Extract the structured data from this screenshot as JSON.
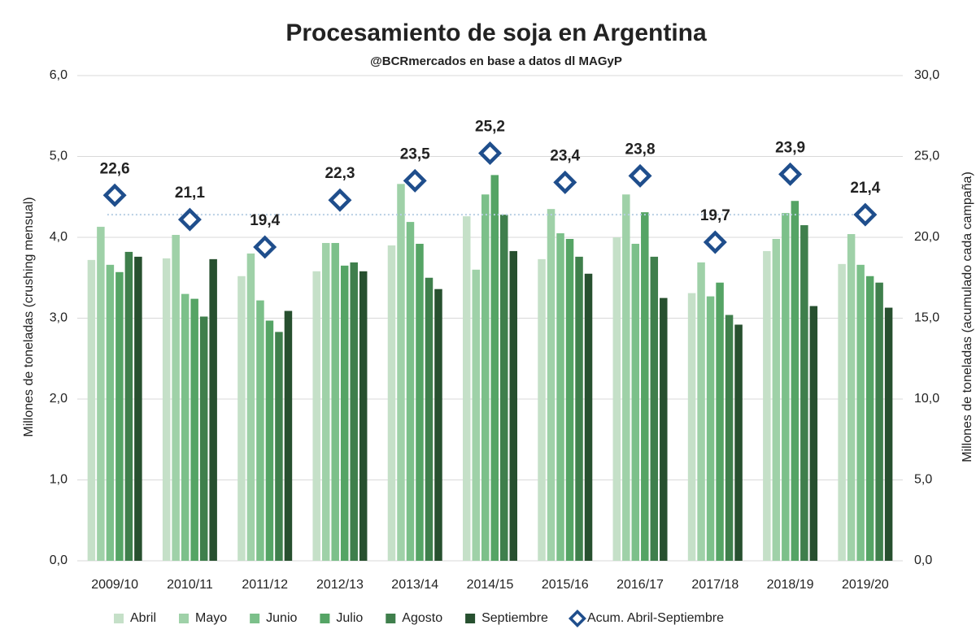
{
  "chart_data": {
    "type": "bar",
    "title": "Procesamiento de soja en Argentina",
    "subtitle": "@BCRmercados en base a datos dl MAGyP",
    "y_label": "Millones de toneladas (crushing mensual)",
    "y2_label": "Millones de toneladas (acumulado cada campaña)",
    "categories": [
      "2009/10",
      "2010/11",
      "2011/12",
      "2012/13",
      "2013/14",
      "2014/15",
      "2015/16",
      "2016/17",
      "2017/18",
      "2018/19",
      "2019/20"
    ],
    "series": [
      {
        "name": "Abril",
        "color": "#c5e0c8",
        "values": [
          3.72,
          3.74,
          3.52,
          3.58,
          3.9,
          4.26,
          3.73,
          4.0,
          3.31,
          3.83,
          3.67
        ]
      },
      {
        "name": "Mayo",
        "color": "#9fd1a8",
        "values": [
          4.13,
          4.03,
          3.8,
          3.93,
          4.66,
          3.6,
          4.35,
          4.53,
          3.69,
          3.98,
          4.04
        ]
      },
      {
        "name": "Junio",
        "color": "#7cc08a",
        "values": [
          3.66,
          3.3,
          3.22,
          3.93,
          4.19,
          4.53,
          4.05,
          3.92,
          3.27,
          4.3,
          3.66
        ]
      },
      {
        "name": "Julio",
        "color": "#55a465",
        "values": [
          3.57,
          3.24,
          2.97,
          3.65,
          3.92,
          4.77,
          3.98,
          4.31,
          3.44,
          4.45,
          3.52
        ]
      },
      {
        "name": "Agosto",
        "color": "#3f7f4c",
        "values": [
          3.82,
          3.02,
          2.83,
          3.69,
          3.5,
          4.28,
          3.76,
          3.76,
          3.04,
          4.15,
          3.44
        ]
      },
      {
        "name": "Septiembre",
        "color": "#27502f",
        "values": [
          3.76,
          3.73,
          3.09,
          3.58,
          3.36,
          3.83,
          3.55,
          3.25,
          2.92,
          3.15,
          3.13
        ]
      },
      {
        "name": "Acum. Abril-Septiembre",
        "color": "#1f4e8c",
        "axis": "y2",
        "type": "scatter",
        "values": [
          22.6,
          21.1,
          19.4,
          22.3,
          23.5,
          25.2,
          23.4,
          23.8,
          19.7,
          23.9,
          21.4
        ],
        "value_labels": [
          "22,6",
          "21,1",
          "19,4",
          "22,3",
          "23,5",
          "25,2",
          "23,4",
          "23,8",
          "19,7",
          "23,9",
          "21,4"
        ]
      }
    ],
    "ylim": [
      0,
      6
    ],
    "yticks": [
      {
        "value": 0,
        "label": "0,0"
      },
      {
        "value": 1,
        "label": "1,0"
      },
      {
        "value": 2,
        "label": "2,0"
      },
      {
        "value": 3,
        "label": "3,0"
      },
      {
        "value": 4,
        "label": "4,0"
      },
      {
        "value": 5,
        "label": "5,0"
      },
      {
        "value": 6,
        "label": "6,0"
      }
    ],
    "y2lim": [
      0,
      30
    ],
    "y2ticks": [
      {
        "value": 0,
        "label": "0,0"
      },
      {
        "value": 5,
        "label": "5,0"
      },
      {
        "value": 10,
        "label": "10,0"
      },
      {
        "value": 15,
        "label": "15,0"
      },
      {
        "value": 20,
        "label": "20,0"
      },
      {
        "value": 25,
        "label": "25,0"
      },
      {
        "value": 30,
        "label": "30,0"
      }
    ],
    "grid": true,
    "legend": "bottom"
  }
}
